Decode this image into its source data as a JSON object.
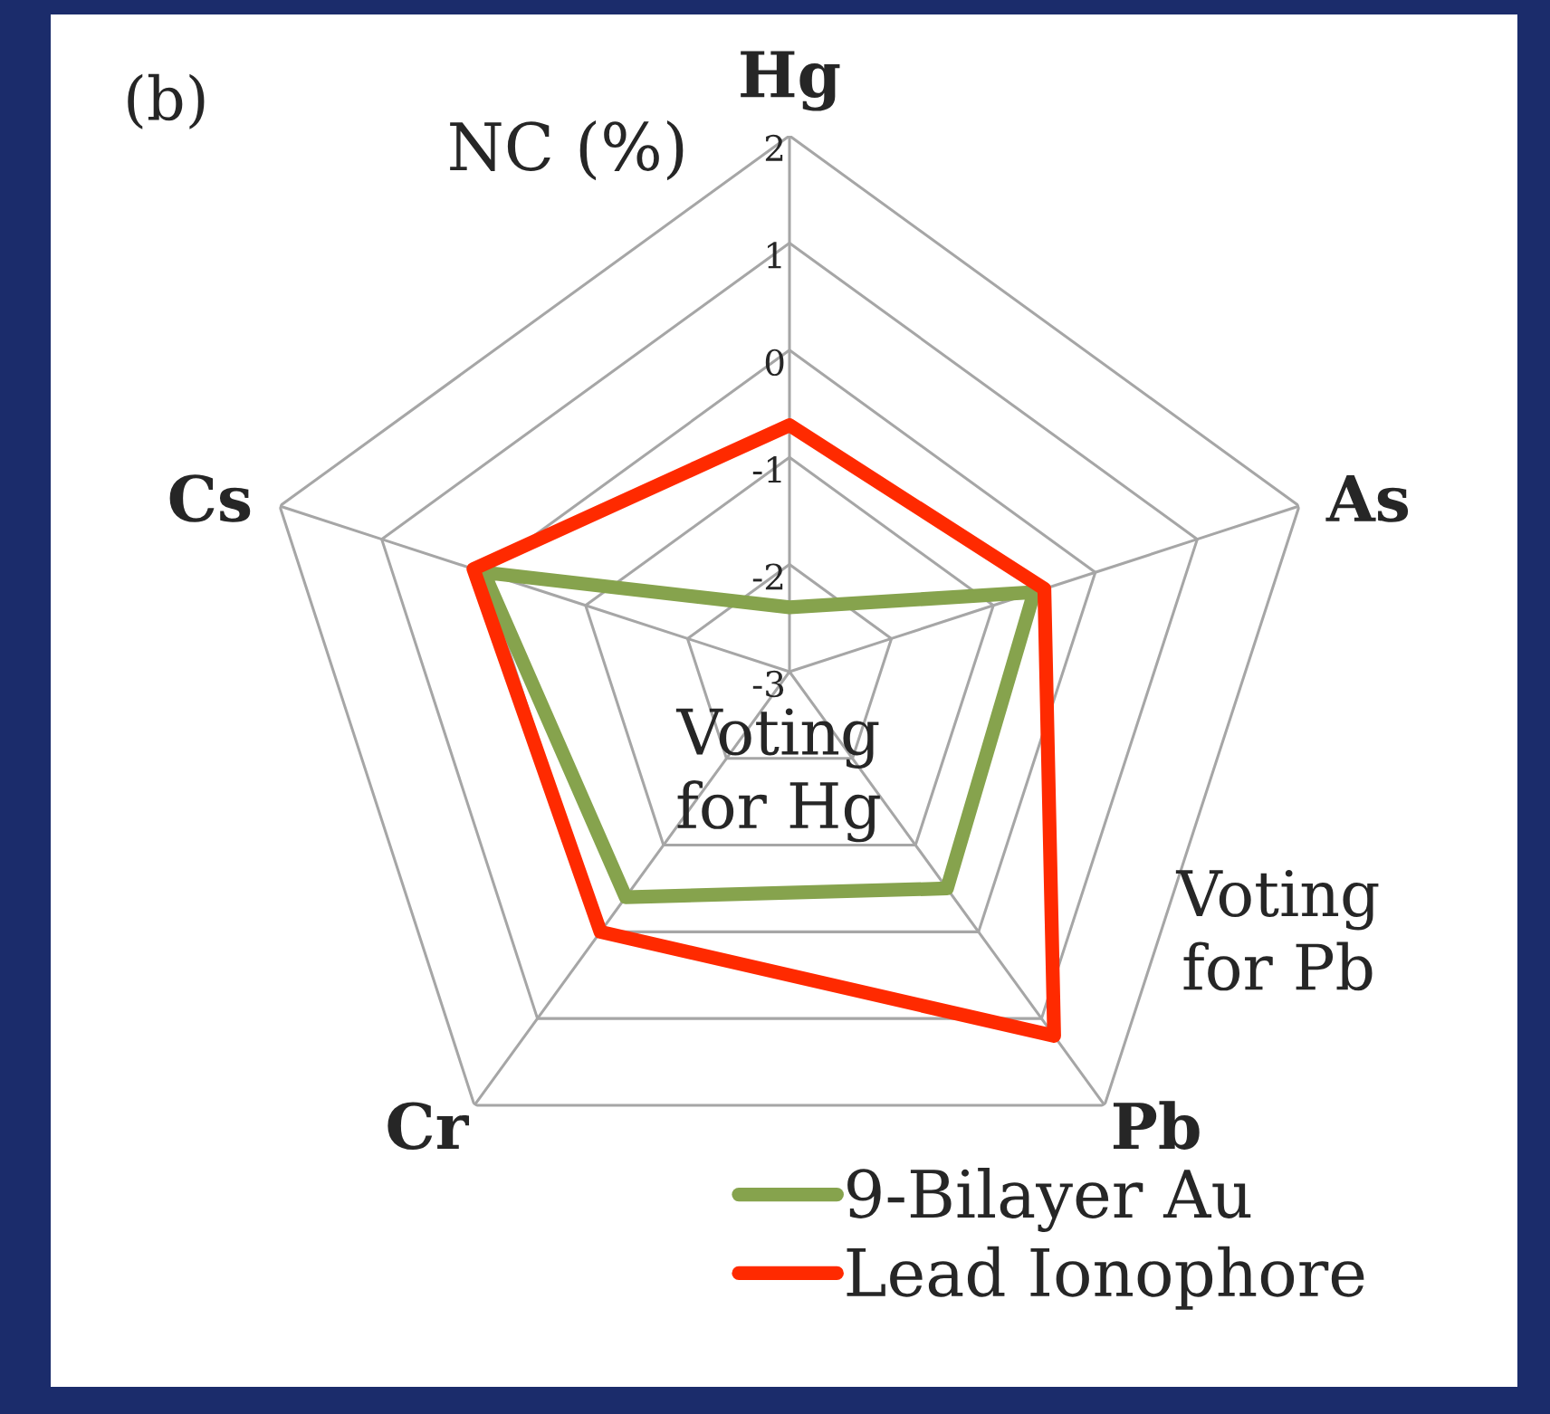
{
  "chart_data": {
    "type": "radar",
    "categories": [
      "Hg",
      "As",
      "Pb",
      "Cr",
      "Cs"
    ],
    "series": [
      {
        "name": "9-Bilayer Au",
        "color": "#86a34d",
        "values": [
          -2.4,
          -0.6,
          -0.5,
          -0.4,
          0.0
        ]
      },
      {
        "name": "Lead Ionophore",
        "color": "#ff2a00",
        "values": [
          -0.7,
          -0.5,
          1.2,
          0.0,
          0.1
        ]
      }
    ],
    "ylim": [
      -3,
      2
    ],
    "yticks": [
      -3,
      -2,
      -1,
      0,
      1,
      2
    ],
    "ylabel": "NC (%)",
    "grid": true,
    "legend": "bottom",
    "annotations": [
      "(b)",
      "Voting\nfor Hg",
      "Voting\nfor Pb"
    ]
  }
}
